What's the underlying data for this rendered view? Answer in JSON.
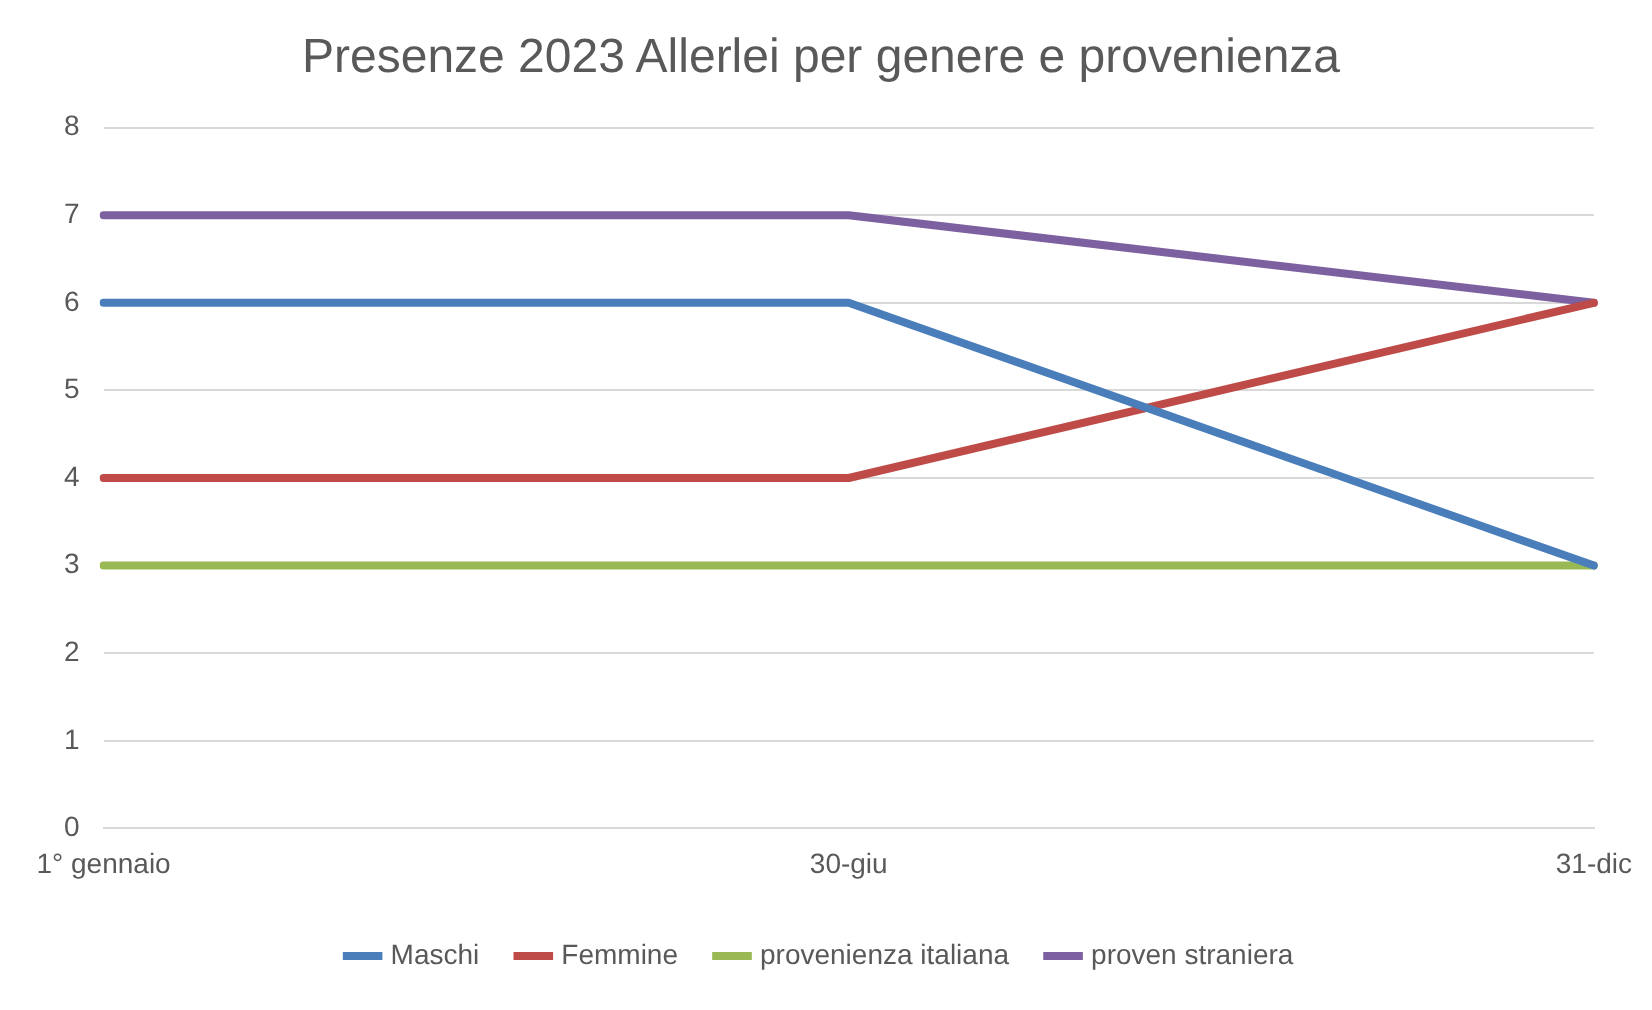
{
  "chart_data": {
    "type": "line",
    "title": "Presenze 2023 Allerlei per genere e provenienza",
    "categories": [
      "1° gennaio",
      "30-giu",
      "31-dic"
    ],
    "series": [
      {
        "name": "Maschi",
        "color": "#4a7ebb",
        "values": [
          6,
          6,
          3
        ]
      },
      {
        "name": "Femmine",
        "color": "#be4b48",
        "values": [
          4,
          4,
          6
        ]
      },
      {
        "name": "provenienza italiana",
        "color": "#98b954",
        "values": [
          3,
          3,
          3
        ]
      },
      {
        "name": "proven straniera",
        "color": "#7d60a0",
        "values": [
          7,
          7,
          6
        ]
      }
    ],
    "ylim": [
      0,
      8
    ],
    "yticks": [
      0,
      1,
      2,
      3,
      4,
      5,
      6,
      7,
      8
    ],
    "grid": "y",
    "legend": "bottom",
    "marker": "none",
    "line_style": "solid"
  }
}
